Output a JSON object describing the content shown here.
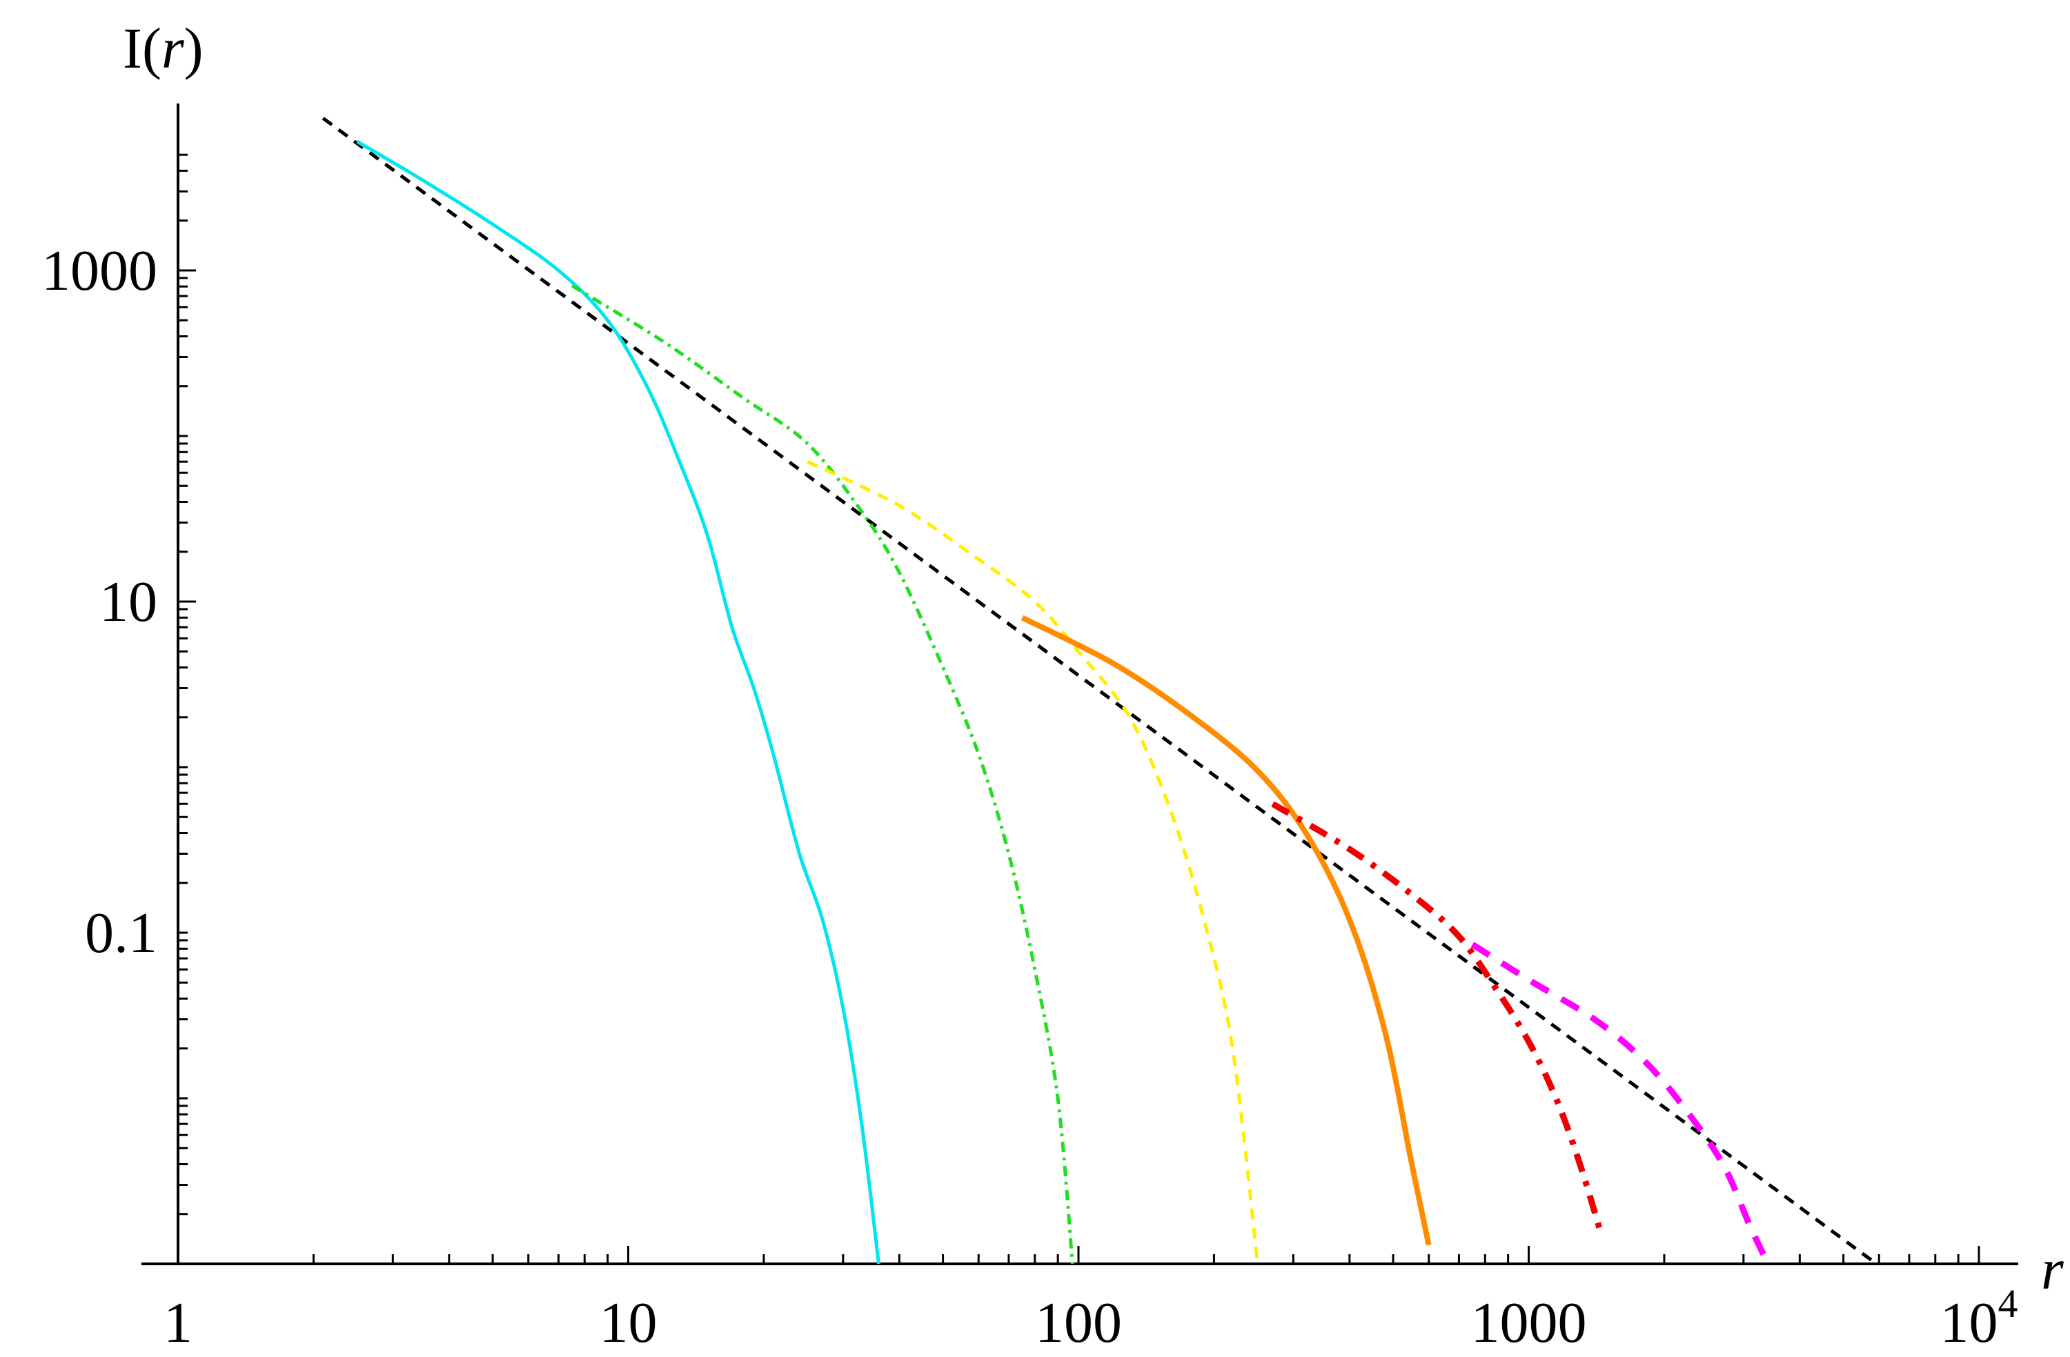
{
  "chart_data": {
    "type": "line",
    "title": "",
    "xlabel": "r",
    "ylabel": "I(r)",
    "x_scale": "log",
    "y_scale": "log",
    "xlim": [
      1,
      10000
    ],
    "ylim": [
      0.001,
      10000
    ],
    "x_ticks": [
      {
        "value": 1,
        "label": "1"
      },
      {
        "value": 10,
        "label": "10"
      },
      {
        "value": 100,
        "label": "100"
      },
      {
        "value": 1000,
        "label": "1000"
      },
      {
        "value": 10000,
        "label": "10",
        "exp": "4"
      }
    ],
    "y_ticks": [
      {
        "value": 0.1,
        "label": "0.1"
      },
      {
        "value": 10,
        "label": "10"
      },
      {
        "value": 1000,
        "label": "1000"
      }
    ],
    "grid": false,
    "legend": "none",
    "series": [
      {
        "color": "#000000",
        "dash": "dashed",
        "width": 5,
        "points": [
          [
            2.1,
            8300
          ],
          [
            6500,
            0.00083
          ]
        ]
      },
      {
        "color": "#00e5ee",
        "dash": "solid",
        "width": 5,
        "points": [
          [
            2.5,
            6000
          ],
          [
            3.5,
            3500
          ],
          [
            5,
            1900
          ],
          [
            7,
            1000
          ],
          [
            9,
            500
          ],
          [
            11,
            200
          ],
          [
            13,
            70
          ],
          [
            15,
            25
          ],
          [
            17,
            7
          ],
          [
            19,
            3
          ],
          [
            21,
            1.2
          ],
          [
            24,
            0.3
          ],
          [
            27,
            0.12
          ],
          [
            30,
            0.035
          ],
          [
            33,
            0.007
          ],
          [
            36,
            0.001
          ]
        ]
      },
      {
        "color": "#22dd22",
        "dash": "dashdot",
        "width": 5,
        "points": [
          [
            7.5,
            810
          ],
          [
            12,
            370
          ],
          [
            18,
            170
          ],
          [
            25,
            90
          ],
          [
            33,
            35
          ],
          [
            40,
            15
          ],
          [
            50,
            4
          ],
          [
            60,
            1.2
          ],
          [
            70,
            0.3
          ],
          [
            80,
            0.06
          ],
          [
            90,
            0.01
          ],
          [
            97,
            0.001
          ]
        ]
      },
      {
        "color": "#ffee00",
        "dash": "dashed",
        "width": 5,
        "points": [
          [
            25,
            70
          ],
          [
            40,
            38
          ],
          [
            60,
            18
          ],
          [
            80,
            10
          ],
          [
            100,
            5
          ],
          [
            130,
            2
          ],
          [
            160,
            0.55
          ],
          [
            190,
            0.12
          ],
          [
            220,
            0.02
          ],
          [
            250,
            0.001
          ]
        ]
      },
      {
        "color": "#ff8c00",
        "dash": "solid",
        "width": 8,
        "points": [
          [
            75,
            8
          ],
          [
            120,
            4.2
          ],
          [
            180,
            2
          ],
          [
            250,
            0.95
          ],
          [
            320,
            0.4
          ],
          [
            400,
            0.12
          ],
          [
            480,
            0.025
          ],
          [
            550,
            0.004
          ],
          [
            600,
            0.0013
          ]
        ]
      },
      {
        "color": "#ee0000",
        "dash": "dashdot",
        "width": 9,
        "points": [
          [
            270,
            0.6
          ],
          [
            400,
            0.32
          ],
          [
            550,
            0.17
          ],
          [
            700,
            0.095
          ],
          [
            850,
            0.045
          ],
          [
            1000,
            0.022
          ],
          [
            1150,
            0.01
          ],
          [
            1300,
            0.004
          ],
          [
            1450,
            0.0015
          ]
        ]
      },
      {
        "color": "#ff00ff",
        "dash": "dashed",
        "width": 9,
        "points": [
          [
            750,
            0.085
          ],
          [
            1000,
            0.052
          ],
          [
            1400,
            0.03
          ],
          [
            1800,
            0.017
          ],
          [
            2200,
            0.009
          ],
          [
            2700,
            0.004
          ],
          [
            3100,
            0.0017
          ],
          [
            3400,
            0.001
          ]
        ]
      }
    ]
  }
}
